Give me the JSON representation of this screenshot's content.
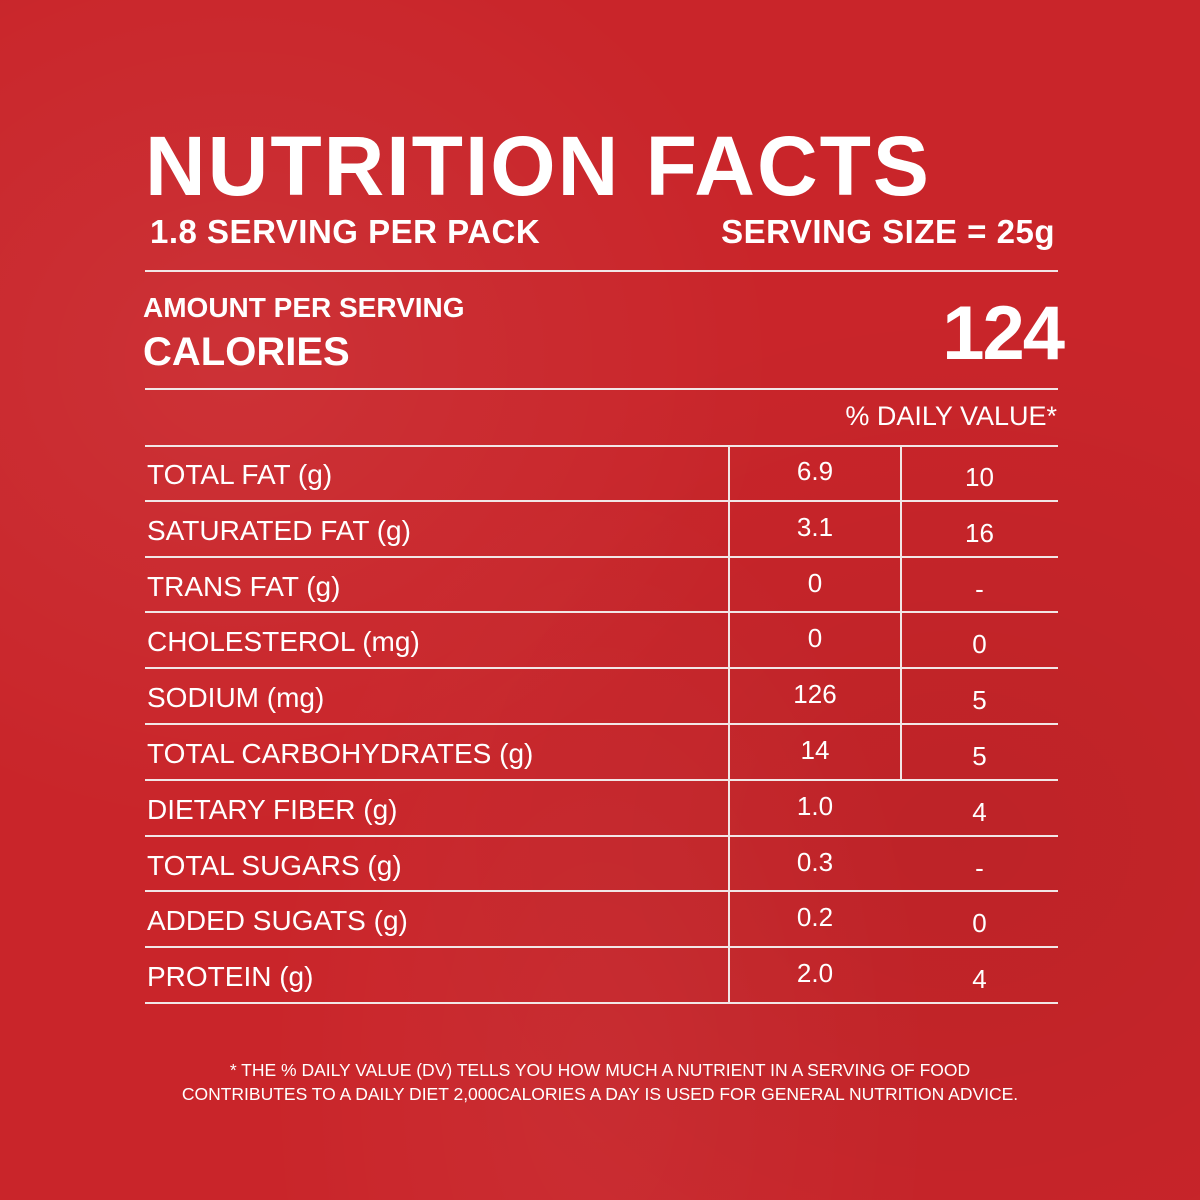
{
  "title": "NUTRITION FACTS",
  "servings_per_pack": "1.8 SERVING PER PACK",
  "serving_size": "SERVING SIZE = 25g",
  "amount_per_serving": "AMOUNT PER SERVING",
  "calories_label": "CALORIES",
  "calories_value": "124",
  "daily_value_header": "% DAILY VALUE*",
  "rows": [
    {
      "name": "TOTAL FAT (g)",
      "amount": "6.9",
      "dv": "10"
    },
    {
      "name": "SATURATED FAT (g)",
      "amount": "3.1",
      "dv": "16"
    },
    {
      "name": "TRANS FAT (g)",
      "amount": "0",
      "dv": "-"
    },
    {
      "name": "CHOLESTEROL (mg)",
      "amount": "0",
      "dv": "0"
    },
    {
      "name": "SODIUM (mg)",
      "amount": "126",
      "dv": "5"
    },
    {
      "name": "TOTAL CARBOHYDRATES (g)",
      "amount": "14",
      "dv": "5"
    },
    {
      "name": "DIETARY FIBER (g)",
      "amount": "1.0",
      "dv": "4"
    },
    {
      "name": "TOTAL SUGARS (g)",
      "amount": "0.3",
      "dv": "-"
    },
    {
      "name": "ADDED SUGATS (g)",
      "amount": "0.2",
      "dv": "0"
    },
    {
      "name": "PROTEIN (g)",
      "amount": "2.0",
      "dv": "4"
    }
  ],
  "footnote_line1": "* THE % DAILY VALUE (DV) TELLS YOU HOW MUCH A NUTRIENT IN A SERVING OF FOOD",
  "footnote_line2": "CONTRIBUTES TO A DAILY DIET 2,000CALORIES A DAY IS USED FOR GENERAL NUTRITION ADVICE."
}
